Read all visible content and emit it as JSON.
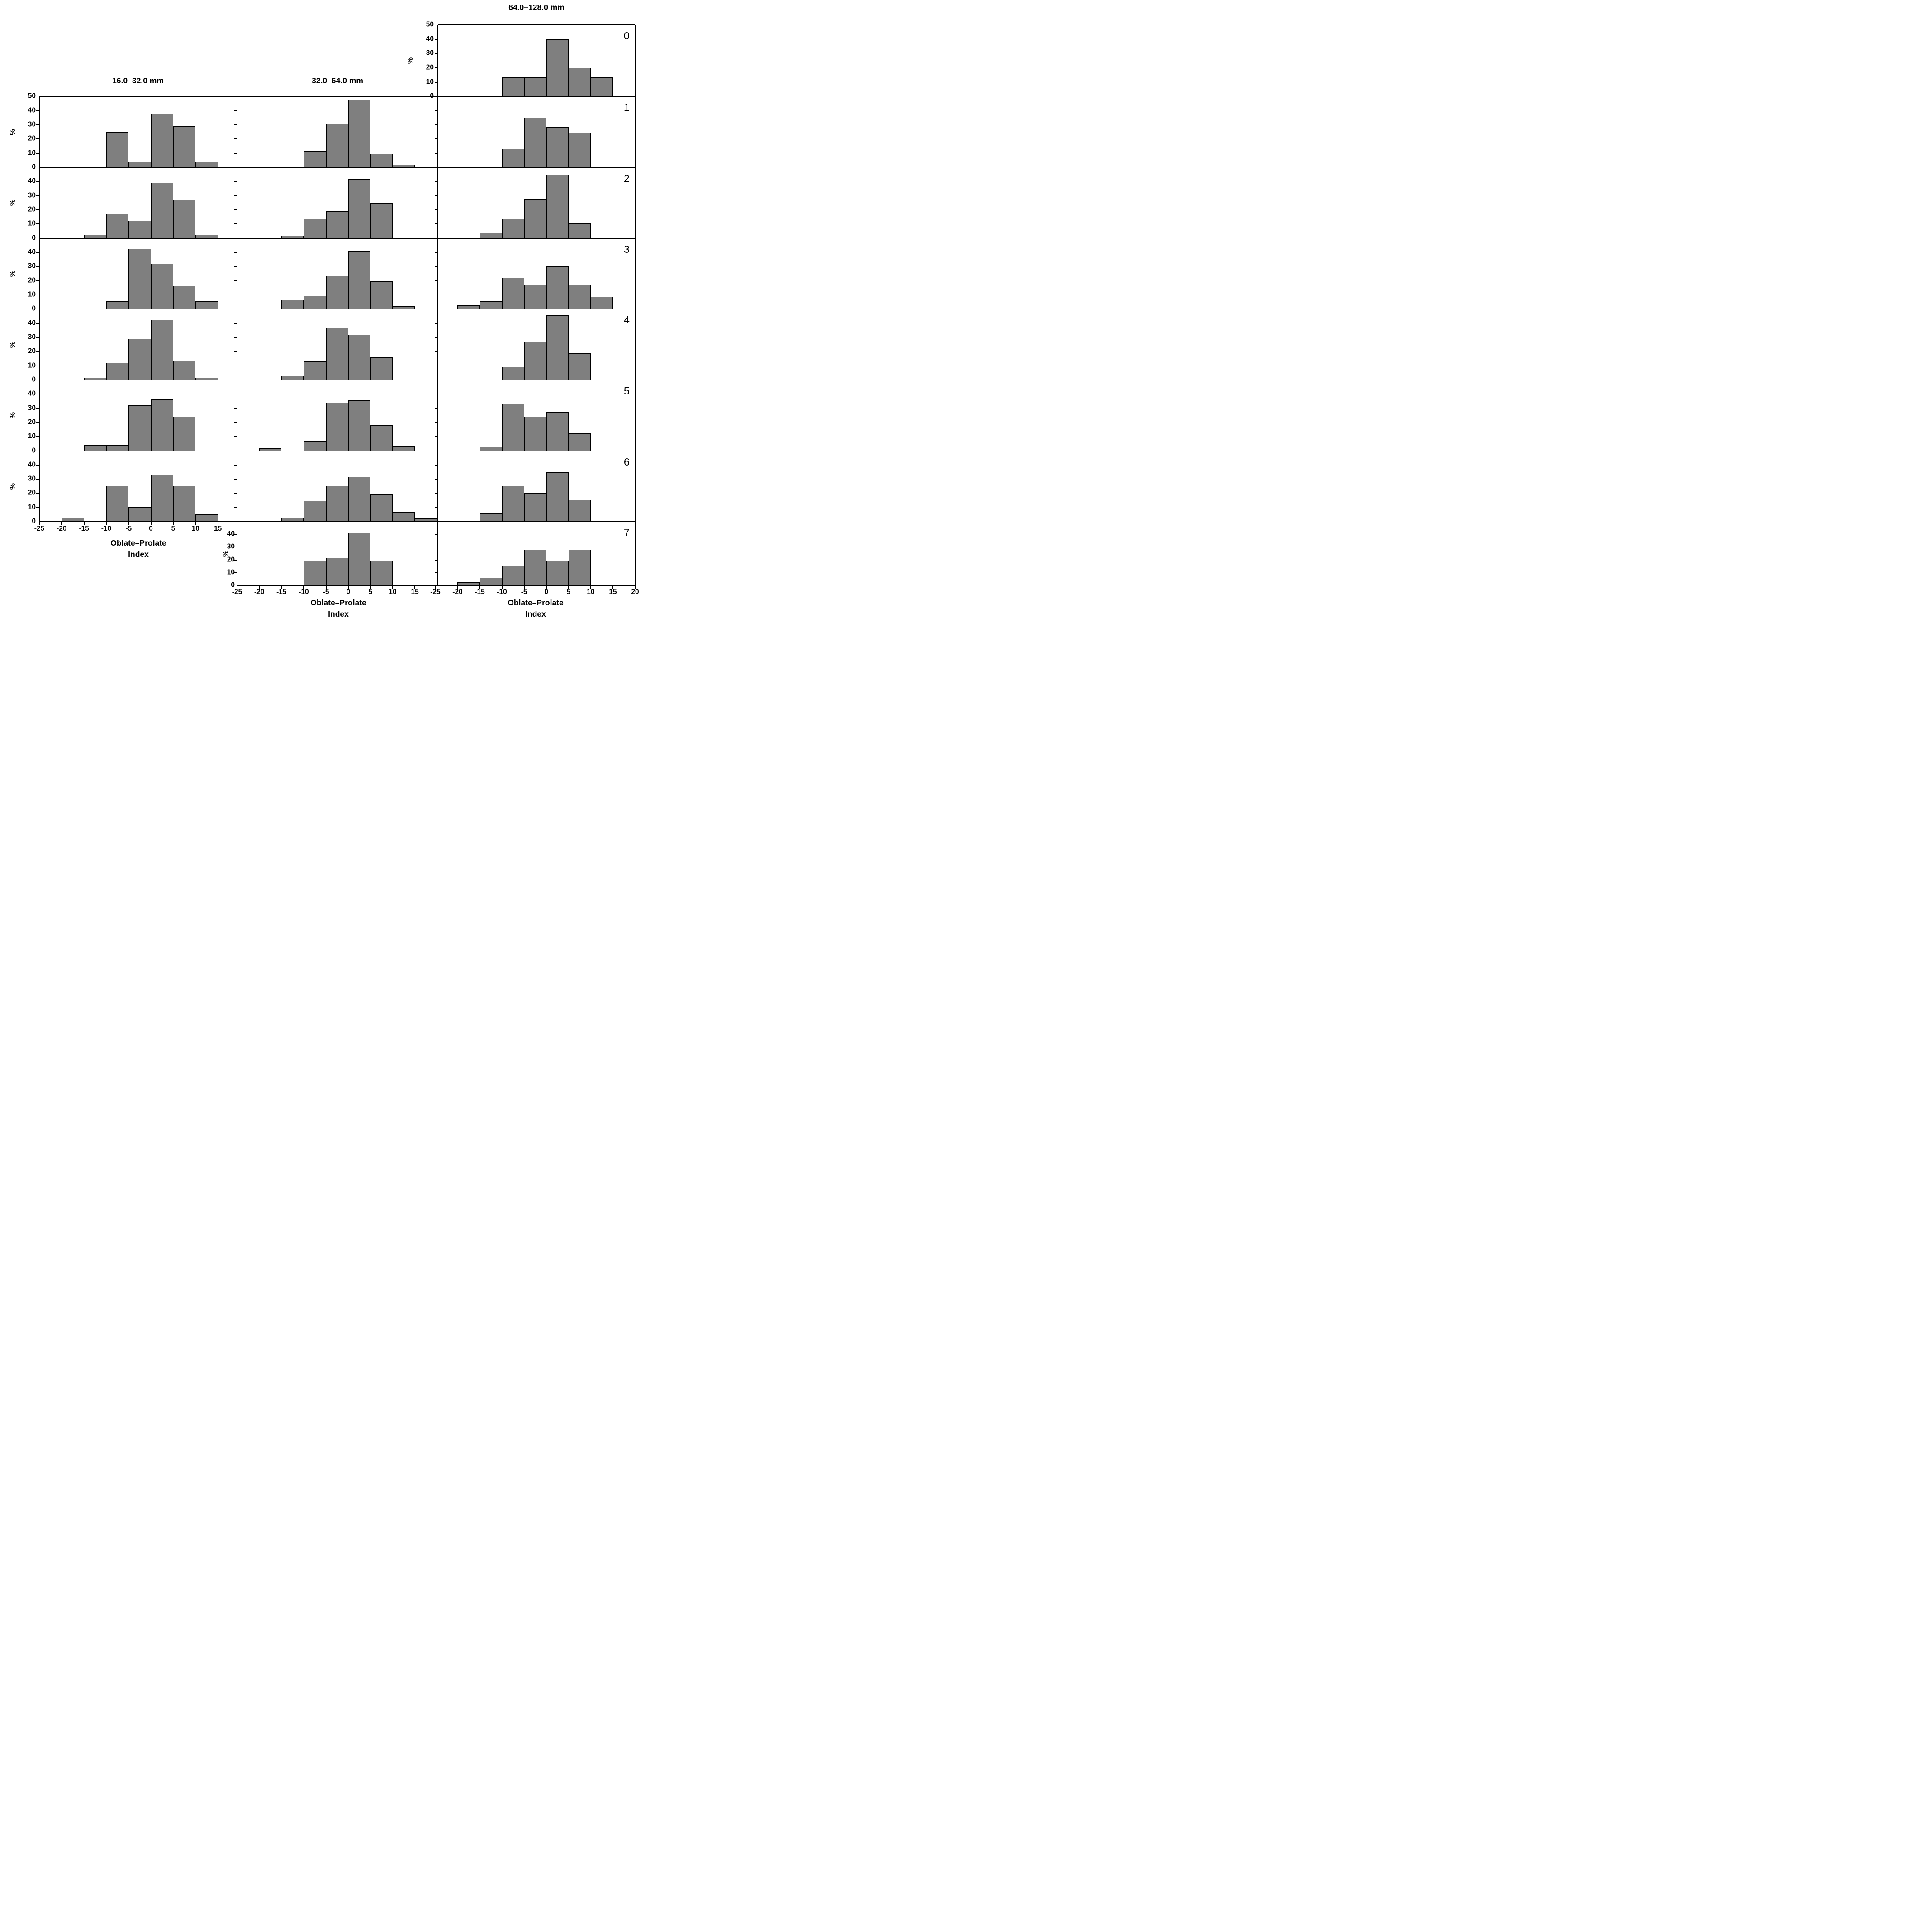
{
  "axis": {
    "y_label": "%",
    "x_label_line1": "Oblate–Prolate",
    "x_label_line2": "Index"
  },
  "chart_data": {
    "type": "bar",
    "subtype": "histogram-small-multiples",
    "title": "",
    "xlabel": "Oblate–Prolate Index",
    "ylabel": "%",
    "ylim": [
      0,
      50
    ],
    "bin_width": 5,
    "bar_color": "#7f7f7f",
    "grid": false,
    "row_labels": [
      "0",
      "1",
      "2",
      "3",
      "4",
      "5",
      "6",
      "7"
    ],
    "columns": [
      {
        "title": "16.0–32.0 mm",
        "x_tick_labels": [
          -25,
          -20,
          -15,
          -10,
          -5,
          0,
          5,
          10,
          15
        ],
        "panels": [
          {
            "row": 1,
            "show_percent": true,
            "y_tick_labels": [
              50,
              40,
              30,
              20,
              10,
              0
            ],
            "bars": [
              {
                "x0": -10,
                "v": 25
              },
              {
                "x0": -5,
                "v": 4
              },
              {
                "x0": 0,
                "v": 37.5
              },
              {
                "x0": 5,
                "v": 29
              },
              {
                "x0": 10,
                "v": 4
              }
            ]
          },
          {
            "row": 2,
            "show_percent": true,
            "y_tick_labels": [
              40,
              30,
              20,
              10,
              0
            ],
            "bars": [
              {
                "x0": -15,
                "v": 2.5
              },
              {
                "x0": -10,
                "v": 17.5
              },
              {
                "x0": -5,
                "v": 12.2
              },
              {
                "x0": 0,
                "v": 39
              },
              {
                "x0": 5,
                "v": 27
              },
              {
                "x0": 10,
                "v": 2.5
              }
            ]
          },
          {
            "row": 3,
            "show_percent": true,
            "y_tick_labels": [
              40,
              30,
              20,
              10,
              0
            ],
            "bars": [
              {
                "x0": -10,
                "v": 5.5
              },
              {
                "x0": -5,
                "v": 42.5
              },
              {
                "x0": 0,
                "v": 32
              },
              {
                "x0": 5,
                "v": 16.5
              },
              {
                "x0": 10,
                "v": 5.5
              }
            ]
          },
          {
            "row": 4,
            "show_percent": true,
            "y_tick_labels": [
              40,
              30,
              20,
              10,
              0
            ],
            "bars": [
              {
                "x0": -15,
                "v": 1.5
              },
              {
                "x0": -10,
                "v": 12.2
              },
              {
                "x0": -5,
                "v": 29
              },
              {
                "x0": 0,
                "v": 42.5
              },
              {
                "x0": 5,
                "v": 13.8
              },
              {
                "x0": 10,
                "v": 1.5
              }
            ]
          },
          {
            "row": 5,
            "show_percent": true,
            "y_tick_labels": [
              40,
              30,
              20,
              10,
              0
            ],
            "bars": [
              {
                "x0": -15,
                "v": 4
              },
              {
                "x0": -10,
                "v": 4
              },
              {
                "x0": -5,
                "v": 32.2
              },
              {
                "x0": 0,
                "v": 36.2
              },
              {
                "x0": 5,
                "v": 24
              }
            ]
          },
          {
            "row": 6,
            "show_percent": true,
            "y_tick_labels": [
              40,
              30,
              20,
              10,
              0
            ],
            "bars": [
              {
                "x0": -20,
                "v": 2.5
              },
              {
                "x0": -10,
                "v": 25.2
              },
              {
                "x0": -5,
                "v": 10.2
              },
              {
                "x0": 0,
                "v": 32.8
              },
              {
                "x0": 5,
                "v": 25.2
              },
              {
                "x0": 10,
                "v": 5
              }
            ]
          }
        ]
      },
      {
        "title": "32.0–64.0 mm",
        "x_tick_labels": [
          -25,
          -20,
          -15,
          -10,
          -5,
          0,
          5,
          10,
          15
        ],
        "panels": [
          {
            "row": 1,
            "show_percent": false,
            "y_tick_labels": [],
            "bars": [
              {
                "x0": -10,
                "v": 11.5
              },
              {
                "x0": -5,
                "v": 30.5
              },
              {
                "x0": 0,
                "v": 47.5
              },
              {
                "x0": 5,
                "v": 9.5
              },
              {
                "x0": 10,
                "v": 2
              }
            ]
          },
          {
            "row": 2,
            "show_percent": false,
            "y_tick_labels": [],
            "bars": [
              {
                "x0": -15,
                "v": 1.8
              },
              {
                "x0": -10,
                "v": 13.5
              },
              {
                "x0": -5,
                "v": 19.2
              },
              {
                "x0": 0,
                "v": 41.8
              },
              {
                "x0": 5,
                "v": 24.8
              }
            ]
          },
          {
            "row": 3,
            "show_percent": false,
            "y_tick_labels": [],
            "bars": [
              {
                "x0": -15,
                "v": 6.5
              },
              {
                "x0": -10,
                "v": 9.5
              },
              {
                "x0": -5,
                "v": 23.5
              },
              {
                "x0": 0,
                "v": 41
              },
              {
                "x0": 5,
                "v": 19.5
              },
              {
                "x0": 10,
                "v": 2
              }
            ]
          },
          {
            "row": 4,
            "show_percent": false,
            "y_tick_labels": [],
            "bars": [
              {
                "x0": -15,
                "v": 2.8
              },
              {
                "x0": -10,
                "v": 13.2
              },
              {
                "x0": -5,
                "v": 37
              },
              {
                "x0": 0,
                "v": 31.8
              },
              {
                "x0": 5,
                "v": 16
              }
            ]
          },
          {
            "row": 5,
            "show_percent": false,
            "y_tick_labels": [],
            "bars": [
              {
                "x0": -20,
                "v": 1.8
              },
              {
                "x0": -10,
                "v": 7
              },
              {
                "x0": -5,
                "v": 34
              },
              {
                "x0": 0,
                "v": 35.8
              },
              {
                "x0": 5,
                "v": 18.2
              },
              {
                "x0": 10,
                "v": 3.5
              }
            ]
          },
          {
            "row": 6,
            "show_percent": false,
            "y_tick_labels": [],
            "bars": [
              {
                "x0": -15,
                "v": 2.5
              },
              {
                "x0": -10,
                "v": 14.8
              },
              {
                "x0": -5,
                "v": 25.2
              },
              {
                "x0": 0,
                "v": 31.5
              },
              {
                "x0": 5,
                "v": 19.2
              },
              {
                "x0": 10,
                "v": 6.5
              },
              {
                "x0": 15,
                "v": 2.2
              }
            ]
          },
          {
            "row": 7,
            "show_percent": true,
            "y_tick_labels": [
              40,
              30,
              20,
              10,
              0
            ],
            "bars": [
              {
                "x0": -10,
                "v": 19
              },
              {
                "x0": -5,
                "v": 21.5
              },
              {
                "x0": 0,
                "v": 41
              },
              {
                "x0": 5,
                "v": 19
              }
            ]
          }
        ]
      },
      {
        "title": "64.0–128.0 mm",
        "x_tick_labels": [
          -25,
          -20,
          -15,
          -10,
          -5,
          0,
          5,
          10,
          15,
          20
        ],
        "panels": [
          {
            "row": 0,
            "show_percent": true,
            "y_tick_labels": [
              50,
              40,
              30,
              20,
              10,
              0
            ],
            "bars": [
              {
                "x0": -10,
                "v": 13.3
              },
              {
                "x0": -5,
                "v": 13.3
              },
              {
                "x0": 0,
                "v": 40
              },
              {
                "x0": 5,
                "v": 20
              },
              {
                "x0": 10,
                "v": 13.3
              }
            ]
          },
          {
            "row": 1,
            "show_percent": false,
            "y_tick_labels": [],
            "bars": [
              {
                "x0": -10,
                "v": 13
              },
              {
                "x0": -5,
                "v": 35
              },
              {
                "x0": 0,
                "v": 28.5
              },
              {
                "x0": 5,
                "v": 24.5
              }
            ]
          },
          {
            "row": 2,
            "show_percent": false,
            "y_tick_labels": [],
            "bars": [
              {
                "x0": -15,
                "v": 3.8
              },
              {
                "x0": -10,
                "v": 14
              },
              {
                "x0": -5,
                "v": 27.8
              },
              {
                "x0": 0,
                "v": 44.8
              },
              {
                "x0": 5,
                "v": 10.5
              }
            ]
          },
          {
            "row": 3,
            "show_percent": false,
            "y_tick_labels": [],
            "bars": [
              {
                "x0": -20,
                "v": 2.8
              },
              {
                "x0": -15,
                "v": 5.5
              },
              {
                "x0": -10,
                "v": 22
              },
              {
                "x0": -5,
                "v": 17
              },
              {
                "x0": 0,
                "v": 30
              },
              {
                "x0": 5,
                "v": 17
              },
              {
                "x0": 10,
                "v": 8.8
              }
            ]
          },
          {
            "row": 4,
            "show_percent": false,
            "y_tick_labels": [],
            "bars": [
              {
                "x0": -10,
                "v": 9.2
              },
              {
                "x0": -5,
                "v": 27.2
              },
              {
                "x0": 0,
                "v": 45.5
              },
              {
                "x0": 5,
                "v": 18.8
              }
            ]
          },
          {
            "row": 5,
            "show_percent": false,
            "y_tick_labels": [],
            "bars": [
              {
                "x0": -15,
                "v": 2.8
              },
              {
                "x0": -10,
                "v": 33.5
              },
              {
                "x0": -5,
                "v": 24.2
              },
              {
                "x0": 0,
                "v": 27.2
              },
              {
                "x0": 5,
                "v": 12.2
              }
            ]
          },
          {
            "row": 6,
            "show_percent": false,
            "y_tick_labels": [],
            "bars": [
              {
                "x0": -15,
                "v": 5.8
              },
              {
                "x0": -10,
                "v": 25.2
              },
              {
                "x0": -5,
                "v": 20.2
              },
              {
                "x0": 0,
                "v": 35
              },
              {
                "x0": 5,
                "v": 15.2
              }
            ]
          },
          {
            "row": 7,
            "show_percent": false,
            "y_tick_labels": [],
            "bars": [
              {
                "x0": -20,
                "v": 2.5
              },
              {
                "x0": -15,
                "v": 6
              },
              {
                "x0": -10,
                "v": 15.5
              },
              {
                "x0": -5,
                "v": 28
              },
              {
                "x0": 0,
                "v": 19
              },
              {
                "x0": 5,
                "v": 28
              }
            ]
          }
        ]
      }
    ]
  }
}
